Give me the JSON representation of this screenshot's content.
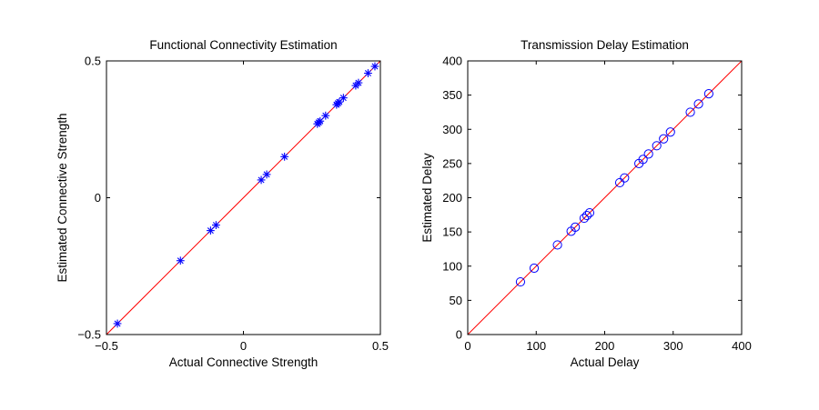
{
  "colors": {
    "marker": "#0000ff",
    "line": "#ff0000",
    "axis": "#000000"
  },
  "chart_data": [
    {
      "type": "scatter",
      "title": "Functional Connectivity Estimation",
      "xlabel": "Actual Connective Strength",
      "ylabel": "Estimated Connective Strength",
      "xlim": [
        -0.5,
        0.5
      ],
      "ylim": [
        -0.5,
        0.5
      ],
      "xticks": [
        -0.5,
        0,
        0.5
      ],
      "xtick_labels": [
        "−0.5",
        "0",
        "0.5"
      ],
      "yticks": [
        -0.5,
        0,
        0.5
      ],
      "ytick_labels": [
        "−0.5",
        "0",
        "0.5"
      ],
      "marker": "asterisk",
      "reference_line": [
        [
          -0.5,
          -0.5
        ],
        [
          0.5,
          0.5
        ]
      ],
      "points": [
        [
          -0.46,
          -0.46
        ],
        [
          -0.23,
          -0.23
        ],
        [
          -0.12,
          -0.12
        ],
        [
          -0.1,
          -0.1
        ],
        [
          0.065,
          0.065
        ],
        [
          0.085,
          0.085
        ],
        [
          0.15,
          0.15
        ],
        [
          0.27,
          0.27
        ],
        [
          0.275,
          0.275
        ],
        [
          0.28,
          0.28
        ],
        [
          0.3,
          0.3
        ],
        [
          0.34,
          0.34
        ],
        [
          0.345,
          0.345
        ],
        [
          0.35,
          0.35
        ],
        [
          0.365,
          0.365
        ],
        [
          0.41,
          0.41
        ],
        [
          0.42,
          0.42
        ],
        [
          0.455,
          0.455
        ],
        [
          0.48,
          0.48
        ]
      ]
    },
    {
      "type": "scatter",
      "title": "Transmission Delay Estimation",
      "xlabel": "Actual Delay",
      "ylabel": "Estimated Delay",
      "xlim": [
        0,
        400
      ],
      "ylim": [
        0,
        400
      ],
      "xticks": [
        0,
        100,
        200,
        300,
        400
      ],
      "xtick_labels": [
        "0",
        "100",
        "200",
        "300",
        "400"
      ],
      "yticks": [
        0,
        50,
        100,
        150,
        200,
        250,
        300,
        350,
        400
      ],
      "ytick_labels": [
        "0",
        "50",
        "100",
        "150",
        "200",
        "250",
        "300",
        "350",
        "400"
      ],
      "marker": "circle",
      "reference_line": [
        [
          0,
          0
        ],
        [
          400,
          400
        ]
      ],
      "points": [
        [
          77,
          77
        ],
        [
          97,
          97
        ],
        [
          131,
          131
        ],
        [
          151,
          151
        ],
        [
          157,
          157
        ],
        [
          170,
          170
        ],
        [
          174,
          174
        ],
        [
          178,
          178
        ],
        [
          222,
          222
        ],
        [
          229,
          229
        ],
        [
          250,
          250
        ],
        [
          256,
          256
        ],
        [
          264,
          264
        ],
        [
          276,
          276
        ],
        [
          286,
          286
        ],
        [
          296,
          296
        ],
        [
          325,
          325
        ],
        [
          337,
          337
        ],
        [
          352,
          352
        ]
      ]
    }
  ]
}
